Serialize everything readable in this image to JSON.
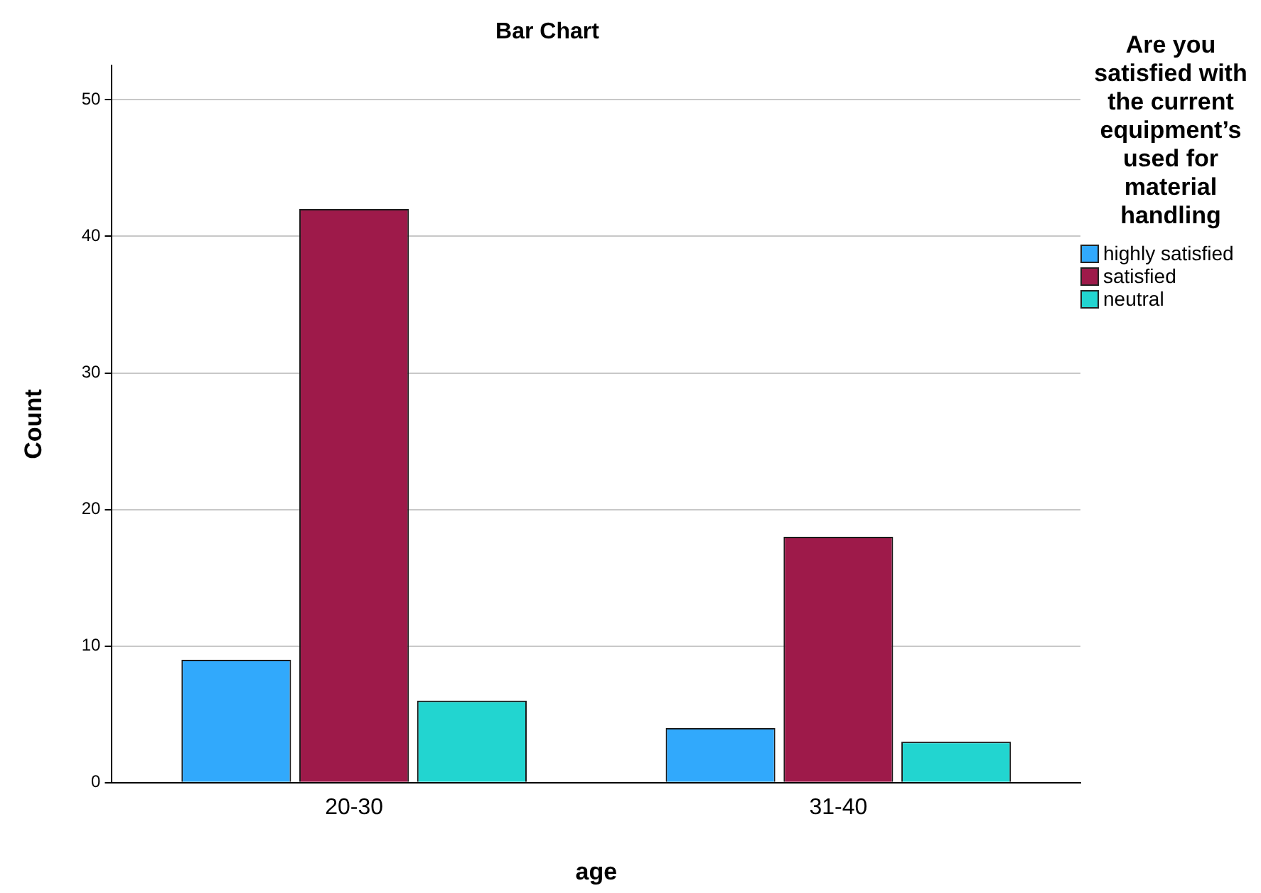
{
  "chart_data": {
    "type": "bar",
    "title": "Bar Chart",
    "xlabel": "age",
    "ylabel": "Count",
    "legend_title": "Are you satisfied with the current equipment’s used for material handling",
    "categories": [
      "20-30",
      "31-40"
    ],
    "series": [
      {
        "name": "highly satisfied",
        "color": "#31a9fc",
        "values": [
          9,
          4
        ]
      },
      {
        "name": "satisfied",
        "color": "#9e1a4a",
        "values": [
          42,
          18
        ]
      },
      {
        "name": "neutral",
        "color": "#22d5d0",
        "values": [
          6,
          3
        ]
      }
    ],
    "ylim": [
      0,
      52.5
    ],
    "yticks": [
      0,
      10,
      20,
      30,
      40,
      50
    ],
    "grid": "y",
    "legend": "right"
  }
}
